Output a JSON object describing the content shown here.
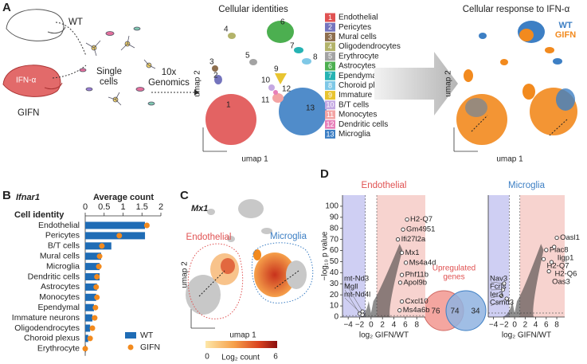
{
  "panel_labels": [
    "A",
    "B",
    "C",
    "D"
  ],
  "panel_a": {
    "wt_label": "WT",
    "gifn_label": "GIFN",
    "ifn_label": "IFN-α",
    "single_cells": [
      "Single",
      "cells"
    ],
    "tenx": [
      "10x",
      "Genomics"
    ],
    "umap_title_1": "Cellular identities",
    "umap_title_2": "Cellular response to IFN-α",
    "umap_x": "umap 1",
    "umap_y": "umap 2",
    "legend": [
      {
        "number": "1",
        "label": "Endothelial",
        "color": "#e05252"
      },
      {
        "number": "2",
        "label": "Pericytes",
        "color": "#7474bd"
      },
      {
        "number": "3",
        "label": "Mural cells",
        "color": "#8d6e4e"
      },
      {
        "number": "4",
        "label": "Oligodendrocytes",
        "color": "#b3b36a"
      },
      {
        "number": "5",
        "label": "Erythrocyte",
        "color": "#a3a3a3"
      },
      {
        "number": "6",
        "label": "Astrocytes",
        "color": "#4caf50"
      },
      {
        "number": "7",
        "label": "Ependymal",
        "color": "#26b3b3"
      },
      {
        "number": "8",
        "label": "Choroid plexus",
        "color": "#7fc8e6"
      },
      {
        "number": "9",
        "label": "Immature neurons",
        "color": "#e8c430"
      },
      {
        "number": "10",
        "label": "B/T cells",
        "color": "#c4a8e2"
      },
      {
        "number": "11",
        "label": "Monocytes",
        "color": "#f3a3a3"
      },
      {
        "number": "12",
        "label": "Dendritic cells",
        "color": "#e77fb9"
      },
      {
        "number": "13",
        "label": "Microglia",
        "color": "#3d7fc4"
      }
    ],
    "response_legend": [
      {
        "label": "WT",
        "color": "#3d7fc4"
      },
      {
        "label": "GIFN",
        "color": "#f28a1e"
      }
    ]
  },
  "panel_c": {
    "gene": "Mx1",
    "endothelial": "Endothelial",
    "microglia": "Microglia",
    "umap_x": "umap 1",
    "umap_y": "umap 2",
    "colorbar_min": 0,
    "colorbar_max": 6,
    "colorbar_label": "Log₂ count"
  },
  "venn": {
    "title": [
      "Upregulated",
      "genes"
    ],
    "left": 76,
    "both": 74,
    "right": 34
  },
  "chart_data": [
    {
      "type": "bar",
      "title": "Ifnar1",
      "xlabel": "Average count",
      "ylabel": "Cell identity",
      "categories": [
        "Endothelial",
        "Pericytes",
        "B/T cells",
        "Mural cells",
        "Microglia",
        "Dendritic cells",
        "Astrocytes",
        "Monocytes",
        "Ependymal",
        "Immature neurons",
        "Oligodendrocytes",
        "Choroid plexus",
        "Erythrocyte"
      ],
      "series": [
        {
          "name": "WT",
          "color": "#1f6cb5",
          "values": [
            1.58,
            1.58,
            0.69,
            0.42,
            0.38,
            0.38,
            0.31,
            0.29,
            0.23,
            0.19,
            0.13,
            0.08,
            0.02
          ]
        },
        {
          "name": "GIFN",
          "color": "#f28a1e",
          "values": [
            1.63,
            0.9,
            0.44,
            0.38,
            0.36,
            0.31,
            0.29,
            0.31,
            0.27,
            0.25,
            0.19,
            0.13,
            0
          ]
        }
      ],
      "xlim": [
        0,
        2
      ],
      "xticks": [
        0,
        0.5,
        1,
        1.5,
        2
      ]
    },
    {
      "type": "scatter",
      "title": "Endothelial",
      "title_color": "#e05252",
      "xlabel": "log₂ GIFN/WT",
      "ylabel": "−log₁₀ p value",
      "xlim": [
        -5,
        9.5
      ],
      "ylim": [
        0,
        110
      ],
      "xticks": [
        {
          "value": -4,
          "label": "−4"
        },
        {
          "value": -2,
          "label": "−2"
        },
        0,
        2,
        4,
        6,
        8
      ],
      "yticks": [
        0,
        10,
        20,
        30,
        40,
        50,
        60,
        70,
        80,
        90,
        100
      ],
      "cutoffs": {
        "x": [
          -1,
          1
        ],
        "y": 1.3
      },
      "shade_colors": [
        "#cfcff3",
        "#f7d3cf"
      ],
      "points": [
        {
          "label": "H2-Q7",
          "x": 6.3,
          "y": 88
        },
        {
          "label": "Gm4951",
          "x": 5.6,
          "y": 79
        },
        {
          "label": "Ifi27l2a",
          "x": 4.7,
          "y": 70
        },
        {
          "label": "Mx1",
          "x": 5.4,
          "y": 58
        },
        {
          "label": "Ms4a4d",
          "x": 6.1,
          "y": 49
        },
        {
          "label": "Phf11b",
          "x": 5.4,
          "y": 38
        },
        {
          "label": "Apol9b",
          "x": 5.1,
          "y": 31
        },
        {
          "label": "Cxcl10",
          "x": 5.4,
          "y": 14
        },
        {
          "label": "Ms4a6b",
          "x": 5,
          "y": 6
        },
        {
          "label": "mt-Nd3",
          "x": -1.5,
          "y": 5
        },
        {
          "label": "Mgll",
          "x": -2,
          "y": 3
        },
        {
          "label": "mt-Nd4l",
          "x": -1.5,
          "y": 2
        }
      ]
    },
    {
      "type": "scatter",
      "title": "Microglia",
      "title_color": "#3d7fc4",
      "xlabel": "log₂ GIFN/WT",
      "xlim": [
        -5,
        9.5
      ],
      "ylim": [
        0,
        40
      ],
      "xticks": [
        {
          "value": -4,
          "label": "−4"
        },
        {
          "value": -2,
          "label": "−2"
        },
        0,
        2,
        4,
        6,
        8
      ],
      "cutoffs": {
        "x": [
          -1,
          1
        ],
        "y": 1.3
      },
      "shade_colors": [
        "#cfcff3",
        "#f7d3cf"
      ],
      "points": [
        {
          "label": "Oasl1",
          "x": 8,
          "y": 26
        },
        {
          "label": "Plac8",
          "x": 6,
          "y": 22
        },
        {
          "label": "Iigp1",
          "x": 7.5,
          "y": 23
        },
        {
          "label": "H2-Q7",
          "x": 5.5,
          "y": 19
        },
        {
          "label": "H2-Q6",
          "x": 7,
          "y": 18
        },
        {
          "label": "Oas3",
          "x": 6.5,
          "y": 15
        },
        {
          "label": "Nav3",
          "x": -2,
          "y": 11
        },
        {
          "label": "Fcrls",
          "x": -2.2,
          "y": 9
        },
        {
          "label": "Ier3",
          "x": -2.5,
          "y": 7
        },
        {
          "label": "Csmd3",
          "x": -1.5,
          "y": 6
        }
      ]
    }
  ]
}
